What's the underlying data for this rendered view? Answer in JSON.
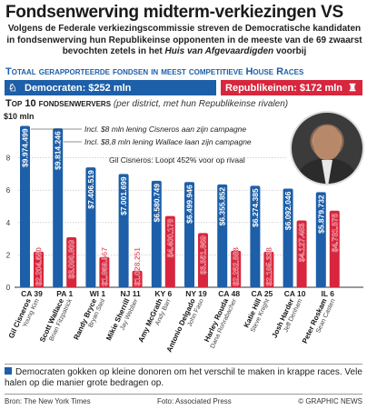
{
  "title": "Fondsenwerving midterm-verkiezingen VS",
  "intro": {
    "text": "Volgens de Federale verkiezingscommissie streven de Democratische kandidaten in fondsenwerving hun Republikeinse opponenten in de meeste van de 69 zwaarst bevochten zetels in het",
    "emph": "Huis van Afgevaardigden",
    "tail": "voorbij"
  },
  "totals": {
    "heading": "Totaal gerapporteerde fondsen  in meest competitieve House Races",
    "democrats": "Democraten: $252 mln",
    "republicans": "Republikeinen: $172 mln",
    "dem_value": 252,
    "rep_value": 172,
    "dem_icon": "donkey-icon",
    "rep_icon": "elephant-icon"
  },
  "chart_heading": {
    "bold": "Top 10 fondsenwervers",
    "italic": "(per district, met hun Republikeinse rivalen)"
  },
  "chart_data": {
    "type": "bar",
    "ylabel": "$10 mln",
    "ylim": [
      0,
      10
    ],
    "yticks": [
      0,
      2,
      4,
      6,
      8
    ],
    "colors": {
      "dem": "#1d5fa8",
      "rep": "#d7263d"
    },
    "districts": [
      {
        "district": "CA 39",
        "dem": "Gil Cisneros",
        "rep": "Young Kim",
        "dem_value": 9974499,
        "rep_value": 2204680,
        "dem_label": "$9.974.499",
        "rep_label": "$2.204.680"
      },
      {
        "district": "PA 1",
        "dem": "Scott Wallace",
        "rep": "Brian Fitzpatrick",
        "dem_value": 9814246,
        "rep_value": 3090809,
        "dem_label": "$9.814.246",
        "rep_label": "$3.090.809"
      },
      {
        "district": "WI 1",
        "dem": "Randy Bryce",
        "rep": "Bryan Steil",
        "dem_value": 7406519,
        "rep_value": 1869567,
        "dem_label": "$7.406.519",
        "rep_label": "$1.869.567"
      },
      {
        "district": "NJ 11",
        "dem": "Mikie Sherrill",
        "rep": "Jay Webber",
        "dem_value": 7001699,
        "rep_value": 1028251,
        "dem_label": "$7.001.699",
        "rep_label": "$1.028.251"
      },
      {
        "district": "KY 6",
        "dem": "Amy McGrath",
        "rep": "Andy Barr",
        "dem_value": 6580749,
        "rep_value": 4400178,
        "dem_label": "$6.580.749",
        "rep_label": "$4.400.178"
      },
      {
        "district": "NY 19",
        "dem": "Antonio Delgado",
        "rep": "John Faso",
        "dem_value": 6499946,
        "rep_value": 3351869,
        "dem_label": "$6.499.946",
        "rep_label": "$3.351.869"
      },
      {
        "district": "CA 48",
        "dem": "Harley Rouda",
        "rep": "Dana Rohrabacher",
        "dem_value": 6355852,
        "rep_value": 2252888,
        "dem_label": "$6.355.852",
        "rep_label": "$2.252.888"
      },
      {
        "district": "CA 25",
        "dem": "Katie Hill",
        "rep": "Steve Knight",
        "dem_value": 6274385,
        "rep_value": 2195338,
        "dem_label": "$6.274.385",
        "rep_label": "$2.195.338"
      },
      {
        "district": "CA 10",
        "dem": "Josh Harder",
        "rep": "Jeff Denham",
        "dem_value": 6092046,
        "rep_value": 4127483,
        "dem_label": "$6.092.046",
        "rep_label": "$4.127.483"
      },
      {
        "district": "IL 6",
        "dem": "Peter Roskam",
        "rep": "Sean Casten",
        "dem_value": 5879732,
        "rep_value": 4731375,
        "dem_label": "$5.879.732",
        "rep_label": "$4.731.375"
      }
    ],
    "annotations": [
      "Incl. $8 mln lening Cisneros aan zijn campagne",
      "Incl. $8,8 mln lening Wallace laan zijn campagne",
      "Gil Cisneros: Loopt 452% voor op rivaal"
    ]
  },
  "footnote": "Democraten gokken op kleine donoren om het verschil te maken in krappe races. Vele halen op die manier grote bedragen op.",
  "credits": {
    "source": "Bron: The New York Times",
    "photo": "Foto: Associated Press",
    "copyright": "© GRAPHIC NEWS"
  }
}
